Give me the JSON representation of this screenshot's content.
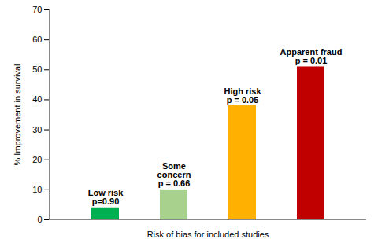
{
  "chart_data": {
    "type": "bar",
    "x_label": "Risk of bias for included studies",
    "y_label": "% Improvement in survival",
    "categories": [
      "Low risk",
      "Some\nconcern",
      "High risk",
      "Apparent fraud"
    ],
    "p_values": [
      "p=0.90",
      "p = 0.66",
      "p = 0.05",
      "p = 0.01"
    ],
    "values": [
      4,
      10,
      38,
      51
    ],
    "colors": [
      "#00b050",
      "#a9d18e",
      "#ffb000",
      "#c00000"
    ],
    "ylim": [
      0,
      70
    ],
    "yticks": [
      0,
      10,
      20,
      30,
      40,
      50,
      60,
      70
    ],
    "grid": false,
    "tick_labels": "y"
  }
}
